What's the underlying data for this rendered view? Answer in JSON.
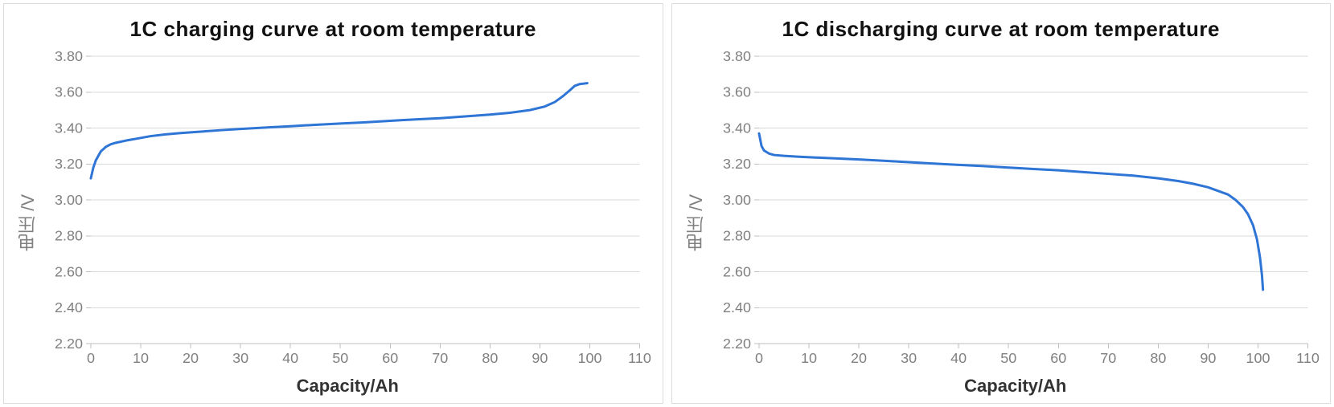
{
  "charging_chart": {
    "type": "line",
    "title": "1C charging curve at room temperature",
    "title_fontsize": 26,
    "title_fontweight": "bold",
    "x_label": "Capacity/Ah",
    "y_label": "电压 /V",
    "label_fontsize": 22,
    "tick_fontsize": 18,
    "tick_color": "#808080",
    "xlim": [
      0,
      110
    ],
    "ylim": [
      2.2,
      3.8
    ],
    "x_ticks": [
      0,
      10,
      20,
      30,
      40,
      50,
      60,
      70,
      80,
      90,
      100,
      110
    ],
    "y_ticks": [
      2.2,
      2.4,
      2.6,
      2.8,
      3.0,
      3.2,
      3.4,
      3.6,
      3.8
    ],
    "line_color": "#2e75d6",
    "line_width": 3,
    "grid_color": "#d9d9d9",
    "axis_color": "#bfbfbf",
    "background_color": "#ffffff",
    "panel_border_color": "#dcdcdc",
    "data": [
      [
        0,
        3.12
      ],
      [
        0.5,
        3.18
      ],
      [
        1,
        3.22
      ],
      [
        2,
        3.27
      ],
      [
        3,
        3.295
      ],
      [
        4,
        3.31
      ],
      [
        5,
        3.318
      ],
      [
        7,
        3.33
      ],
      [
        9,
        3.34
      ],
      [
        12,
        3.355
      ],
      [
        15,
        3.365
      ],
      [
        18,
        3.372
      ],
      [
        22,
        3.38
      ],
      [
        26,
        3.388
      ],
      [
        30,
        3.395
      ],
      [
        35,
        3.403
      ],
      [
        40,
        3.41
      ],
      [
        45,
        3.418
      ],
      [
        50,
        3.425
      ],
      [
        55,
        3.432
      ],
      [
        60,
        3.44
      ],
      [
        65,
        3.448
      ],
      [
        70,
        3.455
      ],
      [
        75,
        3.465
      ],
      [
        80,
        3.475
      ],
      [
        84,
        3.485
      ],
      [
        88,
        3.5
      ],
      [
        91,
        3.52
      ],
      [
        93,
        3.545
      ],
      [
        94.5,
        3.575
      ],
      [
        96,
        3.61
      ],
      [
        97,
        3.635
      ],
      [
        98,
        3.645
      ],
      [
        99,
        3.648
      ],
      [
        99.5,
        3.65
      ]
    ]
  },
  "discharging_chart": {
    "type": "line",
    "title": "1C discharging curve at room temperature",
    "title_fontsize": 26,
    "title_fontweight": "bold",
    "x_label": "Capacity/Ah",
    "y_label": "电压 /V",
    "label_fontsize": 22,
    "tick_fontsize": 18,
    "tick_color": "#808080",
    "xlim": [
      0,
      110
    ],
    "ylim": [
      2.2,
      3.8
    ],
    "x_ticks": [
      0,
      10,
      20,
      30,
      40,
      50,
      60,
      70,
      80,
      90,
      100,
      110
    ],
    "y_ticks": [
      2.2,
      2.4,
      2.6,
      2.8,
      3.0,
      3.2,
      3.4,
      3.6,
      3.8
    ],
    "line_color": "#2e75d6",
    "line_width": 3,
    "grid_color": "#d9d9d9",
    "axis_color": "#bfbfbf",
    "background_color": "#ffffff",
    "panel_border_color": "#dcdcdc",
    "data": [
      [
        0,
        3.37
      ],
      [
        0.5,
        3.3
      ],
      [
        1,
        3.275
      ],
      [
        2,
        3.258
      ],
      [
        3,
        3.25
      ],
      [
        5,
        3.245
      ],
      [
        8,
        3.24
      ],
      [
        12,
        3.235
      ],
      [
        16,
        3.23
      ],
      [
        20,
        3.225
      ],
      [
        25,
        3.218
      ],
      [
        30,
        3.21
      ],
      [
        35,
        3.202
      ],
      [
        40,
        3.195
      ],
      [
        45,
        3.188
      ],
      [
        50,
        3.18
      ],
      [
        55,
        3.172
      ],
      [
        60,
        3.165
      ],
      [
        65,
        3.155
      ],
      [
        70,
        3.145
      ],
      [
        75,
        3.135
      ],
      [
        80,
        3.12
      ],
      [
        84,
        3.105
      ],
      [
        87,
        3.09
      ],
      [
        90,
        3.07
      ],
      [
        92,
        3.05
      ],
      [
        94,
        3.03
      ],
      [
        95.5,
        3.0
      ],
      [
        97,
        2.96
      ],
      [
        98,
        2.92
      ],
      [
        99,
        2.86
      ],
      [
        99.8,
        2.78
      ],
      [
        100.4,
        2.68
      ],
      [
        100.8,
        2.58
      ],
      [
        101.0,
        2.5
      ]
    ]
  }
}
